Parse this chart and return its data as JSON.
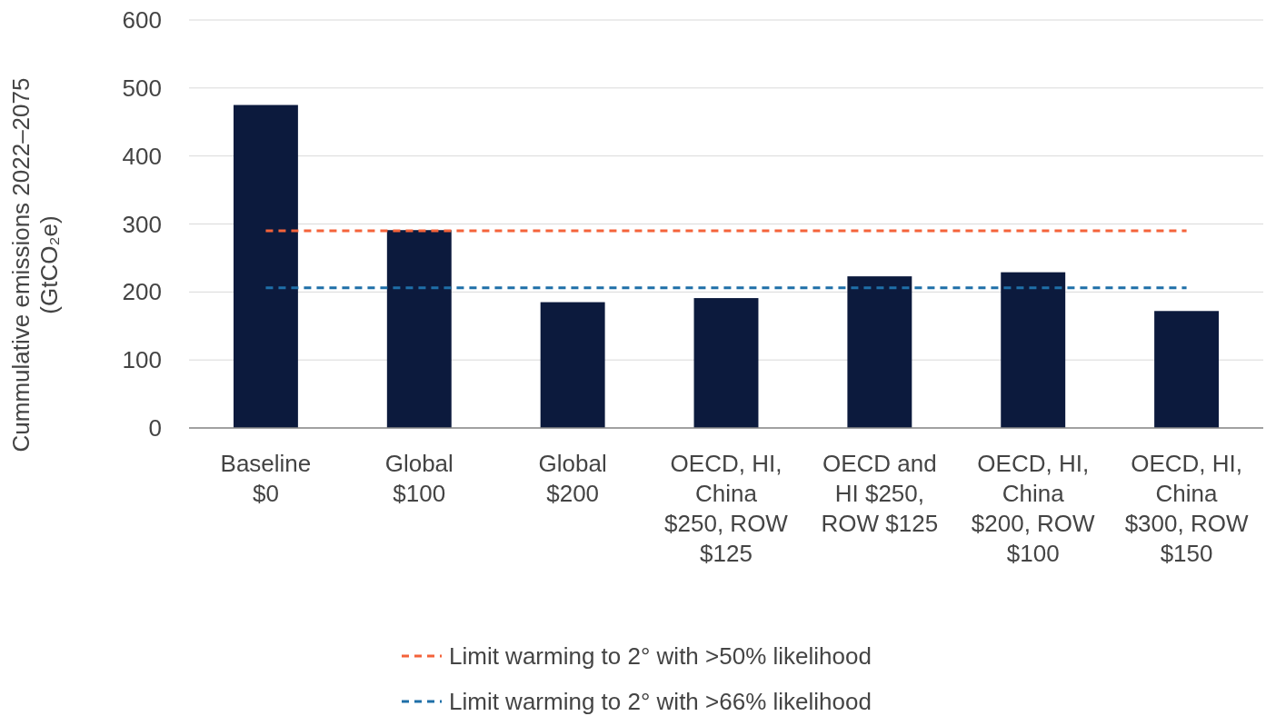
{
  "chart_data": {
    "type": "bar",
    "ylabel": "Cummulative emissions 2022–2075 (GtCO₂e)",
    "categories": [
      "Baseline $0",
      "Global $100",
      "Global $200",
      "OECD, HI, China $250, ROW $125",
      "OECD and HI $250, ROW $125",
      "OECD, HI, China $200, ROW $100",
      "OECD, HI, China $300, ROW $150"
    ],
    "series": [
      {
        "color": "#0c1a3d",
        "values": [
          475,
          291,
          185,
          191,
          223,
          229,
          172
        ]
      },
      {
        "type": "line",
        "name": "Limit warming to 2° with >50% likelihood",
        "color": "#f4633a",
        "line_style": "dashed",
        "values": [
          290,
          290,
          290,
          290,
          290,
          290,
          290
        ]
      },
      {
        "type": "line",
        "name": "Limit warming to 2° with >66% likelihood",
        "color": "#1f6fa8",
        "line_style": "dashed",
        "values": [
          206,
          206,
          206,
          206,
          206,
          206,
          206
        ]
      }
    ],
    "ylim": [
      0,
      600
    ],
    "yticks": [
      0,
      100,
      200,
      300,
      400,
      500,
      600
    ],
    "grid": "y",
    "legend": "bottom",
    "marker": "none"
  }
}
